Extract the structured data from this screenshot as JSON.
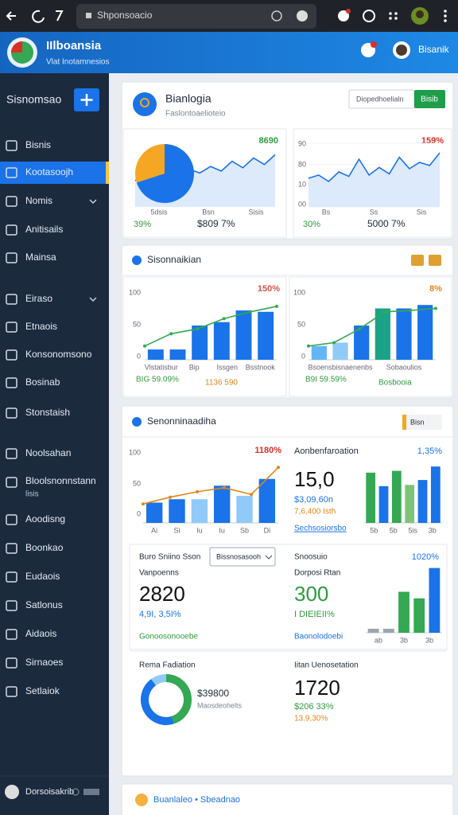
{
  "browser": {
    "url": "Shponsoacio"
  },
  "header": {
    "title": "IIlboansia",
    "subtitle": "Vlat Inotamnesios",
    "user": "Bisanik"
  },
  "sidebar": {
    "title": "Sisnomsao",
    "items": [
      "Bisnis",
      "Kootasoojh",
      "Nomis",
      "Anitisails",
      "Mainsa",
      "Eiraso",
      "Etnaois",
      "Konsonomsono",
      "Bosinab",
      "Stonstaish",
      "Noolsahan",
      "Bloolsnonnstann",
      "Aoodisng",
      "Boonkao",
      "Eudaois",
      "Satlonus",
      "Aidaois",
      "Sirnaoes",
      "Setlaiok"
    ],
    "item_note": "lisis",
    "active_item": 1,
    "footer": "Dorsoisakrib"
  },
  "cards": [
    {
      "title": "Bianlogia",
      "subtitle": "Faslontoaelioteio",
      "search": "Diopedhoelialn",
      "button": "Bisib",
      "panels": [
        {
          "top": "8690",
          "xlabels": [
            "5dsis",
            "Bsn",
            "Sisis"
          ],
          "foot_left": "39%",
          "foot_right": "$809 7%"
        },
        {
          "top": "159%",
          "axis_labels": [
            "90",
            "80",
            "10",
            "00"
          ],
          "xlabels": [
            "Bs",
            "Ss",
            "Sis"
          ],
          "foot_left": "30%",
          "foot_right": "5000 7%"
        }
      ]
    },
    {
      "title": "Sisonnaikian",
      "panels": [
        {
          "top": "150%",
          "axis_labels": [
            "100",
            "50",
            "0"
          ],
          "foot_left": "BIG 59.09%",
          "foot_right": "1136 590"
        },
        {
          "top": "8%",
          "axis_labels": [
            "100",
            "50",
            "0"
          ],
          "foot_left": "B9I 59.59%",
          "foot_right": "Bosbooia"
        }
      ]
    },
    {
      "title": "Senonninaadiha",
      "tag": "Bisn",
      "top_left": {
        "top": "1180%",
        "axis_labels": [
          "100",
          "50",
          "0"
        ]
      },
      "top_right": {
        "title": "Aonbenfaroation",
        "top": "1,35%",
        "big": "15,0",
        "line1": "$3,09,60n",
        "line2": "7,6,400 Isth",
        "link": "Sechsosiorsbo"
      },
      "mid_left": {
        "title": "Buro Sniino Sson",
        "select": "Bissnosasooh",
        "label": "Vanpoenns",
        "big": "2820",
        "line1": "4,9I, 3,5I%",
        "link": "Gonoosonooebe"
      },
      "mid_right": {
        "title": "Snoosuio",
        "top": "1020%",
        "label": "Dorposi Rtan",
        "big": "300",
        "line1": "I DIEIEII%",
        "link": "Baonolodoebi"
      },
      "bottom_left": {
        "title": "Rema Fadiation",
        "value": "$39800",
        "note": "Maosdeohelts"
      },
      "bottom_right": {
        "title": "Iitan Uenosetation",
        "big": "1720",
        "line1": "$206 33%",
        "line2": "13.9,30%"
      }
    },
    {
      "title": "Buanlaleo • Sbeadnao"
    }
  ],
  "charts": [
    {
      "type": "pie-line",
      "ylim": [
        0,
        100
      ],
      "pie": [
        70,
        30
      ],
      "pie_colors": [
        "#1a73e8",
        "#f5a623"
      ],
      "line": [
        40,
        55,
        45,
        60,
        50,
        58,
        52,
        62,
        55,
        70,
        60,
        75,
        65,
        80
      ],
      "color": "#1a73e8"
    },
    {
      "type": "line",
      "ylim": [
        0,
        100
      ],
      "line": [
        45,
        50,
        40,
        55,
        48,
        75,
        50,
        62,
        52,
        78,
        60,
        70,
        65,
        85
      ],
      "color": "#1a73e8"
    },
    {
      "type": "bar-line",
      "ylim": [
        0,
        100
      ],
      "bars": [
        15,
        15,
        50,
        55,
        72,
        70
      ],
      "bar_colors": [
        "#1a73e8",
        "#1a73e8",
        "#1a73e8",
        "#1a73e8",
        "#1a73e8",
        "#1a73e8"
      ],
      "line": [
        20,
        38,
        45,
        60,
        70,
        78
      ],
      "color": "#34a853",
      "xlabels": [
        "Vlstatisbur",
        "Bip",
        "Issgen",
        "Bsstnook"
      ]
    },
    {
      "type": "bar-line",
      "ylim": [
        0,
        100
      ],
      "bars": [
        20,
        25,
        50,
        75,
        75,
        80
      ],
      "bar_colors": [
        "#64b5f6",
        "#90caf9",
        "#1a73e8",
        "#1aa386",
        "#1a73e8",
        "#1a73e8"
      ],
      "line": [
        20,
        25,
        45,
        70,
        72,
        75
      ],
      "color": "#34a853",
      "xlabels": [
        "Bsoensbisnaenenbs",
        "Sobaoulios"
      ]
    },
    {
      "type": "bar-line",
      "ylim": [
        0,
        100
      ],
      "bars": [
        30,
        35,
        35,
        55,
        40,
        65
      ],
      "bar_colors": [
        "#1a73e8",
        "#1a73e8",
        "#90caf9",
        "#1a73e8",
        "#90caf9",
        "#1a73e8"
      ],
      "line": [
        28,
        38,
        46,
        52,
        42,
        82
      ],
      "color": "#e0861a",
      "xlabels": [
        "Ai",
        "Si",
        "Iu",
        "Iu",
        "Sb",
        "Di"
      ]
    },
    {
      "type": "bar",
      "ylim": [
        0,
        100
      ],
      "bars": [
        82,
        60,
        85,
        62,
        70,
        92
      ],
      "bar_colors": [
        "#34a853",
        "#1a73e8",
        "#34a853",
        "#7cc576",
        "#1a73e8",
        "#1a73e8"
      ],
      "xlabels": [
        "5b",
        "5b",
        "5is",
        "3b"
      ]
    },
    {
      "type": "bar",
      "ylim": [
        0,
        100
      ],
      "bars": [
        6,
        6,
        62,
        52,
        98
      ],
      "bar_colors": [
        "#9aa5b1",
        "#9aa5b1",
        "#34a853",
        "#34a853",
        "#1a73e8"
      ],
      "xlabels": [
        "ab",
        "3b",
        "3b"
      ]
    },
    {
      "type": "donut",
      "donut": [
        45,
        45,
        10
      ],
      "donut_colors": [
        "#34a853",
        "#1a73e8",
        "#90caf9"
      ]
    }
  ]
}
